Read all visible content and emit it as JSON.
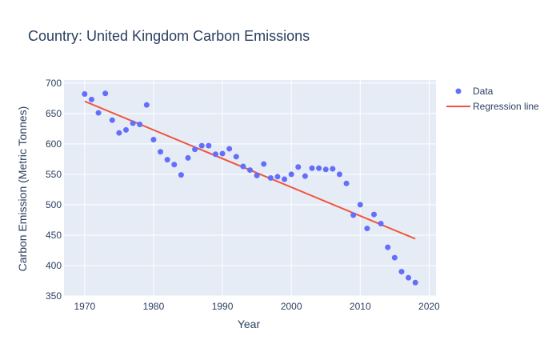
{
  "chart_data": {
    "type": "scatter",
    "title": "Country: United Kingdom Carbon Emissions",
    "xlabel": "Year",
    "ylabel": "Carbon Emission (Metric Tonnes)",
    "xlim": [
      1967,
      2021
    ],
    "ylim": [
      350,
      705
    ],
    "x_ticks": [
      1970,
      1980,
      1990,
      2000,
      2010,
      2020
    ],
    "y_ticks": [
      350,
      400,
      450,
      500,
      550,
      600,
      650,
      700
    ],
    "grid": true,
    "legend_position": "top-right",
    "series": [
      {
        "name": "Data",
        "kind": "markers",
        "color": "#636efa",
        "x": [
          1970,
          1971,
          1972,
          1973,
          1974,
          1975,
          1976,
          1977,
          1978,
          1979,
          1980,
          1981,
          1982,
          1983,
          1984,
          1985,
          1986,
          1987,
          1988,
          1989,
          1990,
          1991,
          1992,
          1993,
          1994,
          1995,
          1996,
          1997,
          1998,
          1999,
          2000,
          2001,
          2002,
          2003,
          2004,
          2005,
          2006,
          2007,
          2008,
          2009,
          2010,
          2011,
          2012,
          2013,
          2014,
          2015,
          2016,
          2017,
          2018
        ],
        "y": [
          682,
          673,
          651,
          683,
          639,
          618,
          623,
          634,
          632,
          664,
          607,
          587,
          574,
          566,
          549,
          577,
          591,
          597,
          597,
          583,
          584,
          592,
          579,
          563,
          557,
          548,
          567,
          544,
          546,
          542,
          550,
          562,
          547,
          560,
          560,
          558,
          559,
          550,
          535,
          483,
          500,
          461,
          484,
          469,
          430,
          413,
          390,
          380,
          372
        ]
      },
      {
        "name": "Regression line",
        "kind": "line",
        "color": "#ef553b",
        "x": [
          1970,
          2018
        ],
        "y": [
          670,
          444
        ]
      }
    ]
  }
}
